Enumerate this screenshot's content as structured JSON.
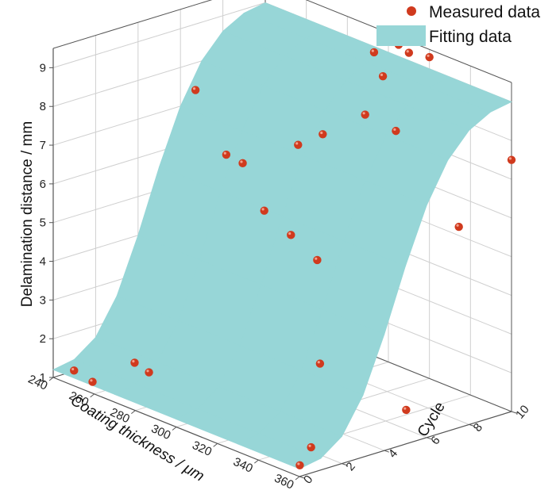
{
  "chart_data": {
    "type": "scatter",
    "subtype": "3d-surface-with-scatter",
    "title": "",
    "xlabel": "Coating thickness / μm",
    "ylabel": "Cycle",
    "zlabel": "Delamination distance / mm",
    "xlim": [
      240,
      360
    ],
    "ylim": [
      0,
      10
    ],
    "zlim": [
      1,
      9.5
    ],
    "x_ticks": [
      240,
      260,
      280,
      300,
      320,
      340,
      360
    ],
    "y_ticks": [
      0,
      2,
      4,
      6,
      8,
      10
    ],
    "z_ticks": [
      1,
      2,
      3,
      4,
      5,
      6,
      7,
      8,
      9
    ],
    "grid": true,
    "legend_position": "top-right",
    "series": [
      {
        "name": "Measured data",
        "kind": "scatter",
        "color": "#d03a1e",
        "points": [
          {
            "x": 245,
            "y": 0.5,
            "z": 1.2
          },
          {
            "x": 254,
            "y": 0.5,
            "z": 1.1
          },
          {
            "x": 259,
            "y": 2,
            "z": 1.45
          },
          {
            "x": 266,
            "y": 2,
            "z": 1.35
          },
          {
            "x": 355,
            "y": 0.5,
            "z": 1.1
          },
          {
            "x": 345,
            "y": 2,
            "z": 1.1
          },
          {
            "x": 255,
            "y": 8.5,
            "z": 4.2
          },
          {
            "x": 268,
            "y": 8.5,
            "z": 3.85
          },
          {
            "x": 268,
            "y": 10,
            "z": 6.2
          },
          {
            "x": 268,
            "y": 4,
            "z": 8.35
          },
          {
            "x": 283,
            "y": 4,
            "z": 7.0
          },
          {
            "x": 291,
            "y": 4,
            "z": 6.95
          },
          {
            "x": 293,
            "y": 10,
            "z": 8.85
          },
          {
            "x": 305,
            "y": 10,
            "z": 9.3
          },
          {
            "x": 310,
            "y": 10,
            "z": 9.2
          },
          {
            "x": 308,
            "y": 6,
            "z": 1.8
          },
          {
            "x": 318,
            "y": 4,
            "z": 8.0
          },
          {
            "x": 318,
            "y": 8,
            "z": 9.1
          },
          {
            "x": 320,
            "y": 10,
            "z": 9.3
          },
          {
            "x": 330,
            "y": 6,
            "z": 8.7
          },
          {
            "x": 345,
            "y": 6,
            "z": 8.6
          },
          {
            "x": 348,
            "y": 2,
            "z": 6.0
          },
          {
            "x": 350,
            "y": 6,
            "z": 1.5
          },
          {
            "x": 355,
            "y": 8,
            "z": 6.0
          },
          {
            "x": 360,
            "y": 10,
            "z": 7.5
          }
        ]
      },
      {
        "name": "Fitting data",
        "kind": "surface",
        "color": "#97d6d7",
        "model": "sigmoid rise in delamination distance with cycle, nearly flat across coating thickness",
        "grid_x": [
          240,
          270,
          300,
          330,
          360
        ],
        "grid_y": [
          0,
          1,
          2,
          3,
          4,
          5,
          6,
          7,
          8,
          9,
          10
        ],
        "z_rows": [
          [
            1.2,
            1.3,
            1.7,
            2.6,
            4.0,
            5.6,
            7.0,
            8.0,
            8.6,
            8.9,
            9.0
          ],
          [
            1.2,
            1.3,
            1.7,
            2.6,
            4.0,
            5.6,
            7.0,
            8.0,
            8.6,
            8.9,
            9.0
          ],
          [
            1.2,
            1.3,
            1.7,
            2.6,
            4.0,
            5.6,
            7.0,
            8.0,
            8.6,
            8.9,
            9.0
          ],
          [
            1.2,
            1.3,
            1.7,
            2.6,
            4.0,
            5.6,
            7.0,
            8.0,
            8.6,
            8.9,
            9.0
          ],
          [
            1.2,
            1.3,
            1.7,
            2.6,
            4.0,
            5.6,
            7.0,
            8.0,
            8.6,
            8.9,
            9.0
          ]
        ]
      }
    ]
  }
}
